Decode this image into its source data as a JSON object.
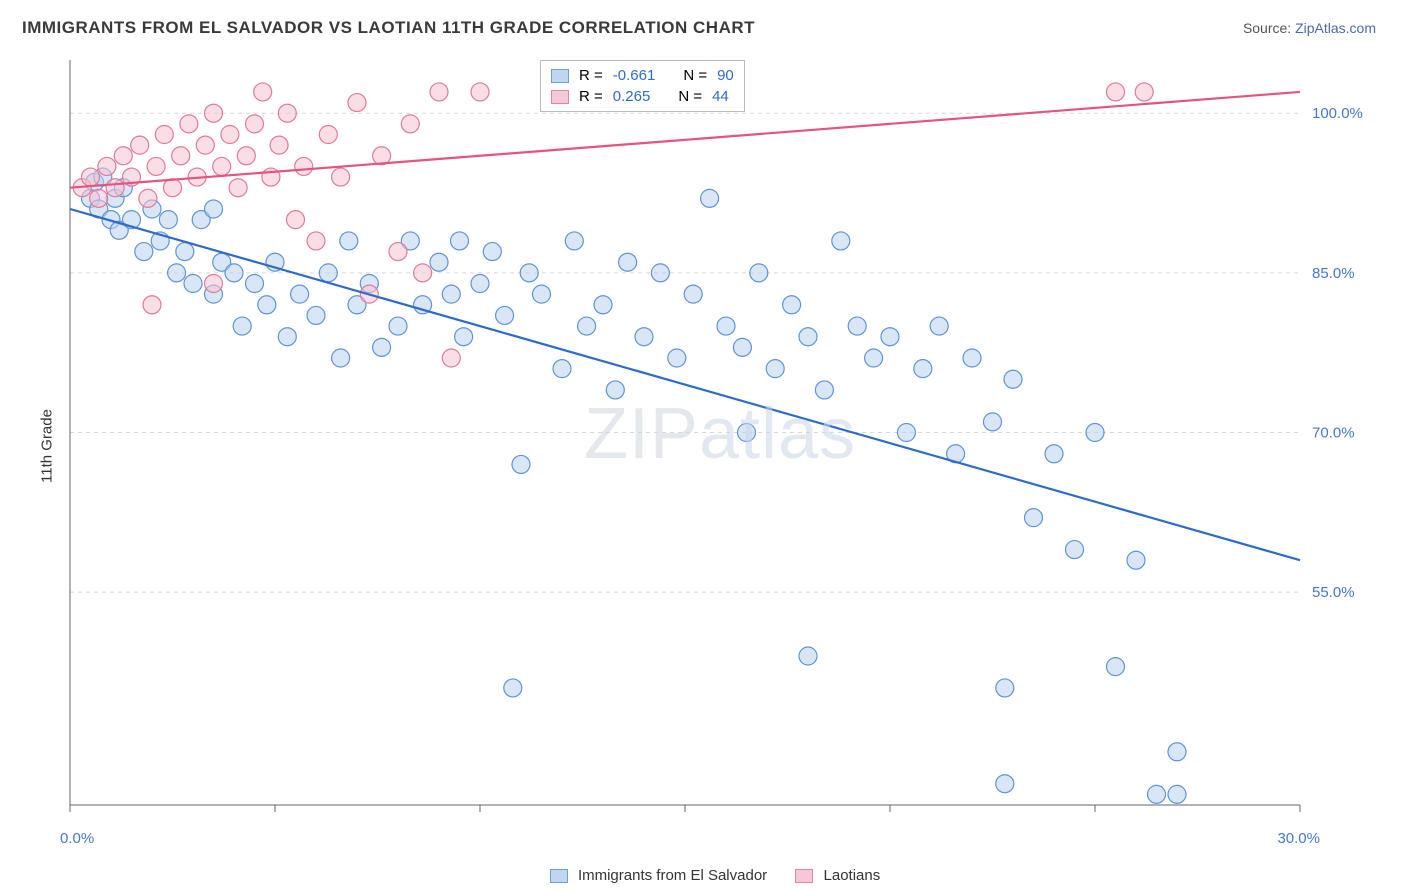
{
  "title": "IMMIGRANTS FROM EL SALVADOR VS LAOTIAN 11TH GRADE CORRELATION CHART",
  "source_prefix": "Source: ",
  "source_link": "ZipAtlas.com",
  "ylabel": "11th Grade",
  "watermark_a": "ZIP",
  "watermark_b": "atlas",
  "chart": {
    "type": "scatter",
    "xlim": [
      0,
      30
    ],
    "ylim": [
      35,
      105
    ],
    "yticks": [
      55.0,
      70.0,
      85.0,
      100.0
    ],
    "xticks_labels": [
      "0.0%",
      "30.0%"
    ],
    "yticks_labels": [
      "55.0%",
      "70.0%",
      "85.0%",
      "100.0%"
    ],
    "grid_color": "#d8d8d8",
    "axis_color": "#666666",
    "background": "#ffffff",
    "marker_radius": 9,
    "marker_stroke_width": 1.2,
    "series": [
      {
        "name": "Immigrants from El Salvador",
        "fill": "#b9d1ef",
        "stroke": "#5f94d6",
        "fill_opacity": 0.55,
        "line_color": "#2e6bc7",
        "line_width": 2.2,
        "R": "-0.661",
        "N": "90",
        "trend": {
          "x1": 0,
          "y1": 91,
          "x2": 30,
          "y2": 58
        },
        "points": [
          [
            0.5,
            92
          ],
          [
            0.6,
            93.5
          ],
          [
            0.7,
            91
          ],
          [
            0.8,
            94
          ],
          [
            1.0,
            90
          ],
          [
            1.1,
            92
          ],
          [
            1.2,
            89
          ],
          [
            1.3,
            93
          ],
          [
            1.5,
            90
          ],
          [
            1.8,
            87
          ],
          [
            2.0,
            91
          ],
          [
            2.2,
            88
          ],
          [
            2.4,
            90
          ],
          [
            2.6,
            85
          ],
          [
            2.8,
            87
          ],
          [
            3.0,
            84
          ],
          [
            3.2,
            90
          ],
          [
            3.5,
            83
          ],
          [
            3.7,
            86
          ],
          [
            4.0,
            85
          ],
          [
            4.2,
            80
          ],
          [
            4.5,
            84
          ],
          [
            4.8,
            82
          ],
          [
            5.0,
            86
          ],
          [
            5.3,
            79
          ],
          [
            5.6,
            83
          ],
          [
            6.0,
            81
          ],
          [
            6.3,
            85
          ],
          [
            6.6,
            77
          ],
          [
            7.0,
            82
          ],
          [
            7.3,
            84
          ],
          [
            7.6,
            78
          ],
          [
            8.0,
            80
          ],
          [
            8.3,
            88
          ],
          [
            8.6,
            82
          ],
          [
            9.0,
            86
          ],
          [
            9.3,
            83
          ],
          [
            9.6,
            79
          ],
          [
            10.0,
            84
          ],
          [
            10.3,
            87
          ],
          [
            10.6,
            81
          ],
          [
            11.0,
            67
          ],
          [
            11.2,
            85
          ],
          [
            11.5,
            83
          ],
          [
            12.0,
            76
          ],
          [
            12.3,
            88
          ],
          [
            12.6,
            80
          ],
          [
            13.0,
            82
          ],
          [
            13.3,
            74
          ],
          [
            13.6,
            86
          ],
          [
            14.0,
            79
          ],
          [
            14.4,
            85
          ],
          [
            14.8,
            77
          ],
          [
            15.2,
            83
          ],
          [
            15.6,
            92
          ],
          [
            16.0,
            80
          ],
          [
            16.4,
            78
          ],
          [
            16.8,
            85
          ],
          [
            17.2,
            76
          ],
          [
            17.6,
            82
          ],
          [
            18.0,
            79
          ],
          [
            18.4,
            74
          ],
          [
            18.8,
            88
          ],
          [
            19.2,
            80
          ],
          [
            19.6,
            77
          ],
          [
            20.0,
            79
          ],
          [
            20.4,
            70
          ],
          [
            20.8,
            76
          ],
          [
            21.2,
            80
          ],
          [
            21.6,
            68
          ],
          [
            22.0,
            77
          ],
          [
            22.5,
            71
          ],
          [
            23.0,
            75
          ],
          [
            23.5,
            62
          ],
          [
            24.0,
            68
          ],
          [
            24.5,
            59
          ],
          [
            25.0,
            70
          ],
          [
            25.5,
            48
          ],
          [
            26.0,
            58
          ],
          [
            26.5,
            36
          ],
          [
            27.0,
            40
          ],
          [
            10.8,
            46
          ],
          [
            18.0,
            49
          ],
          [
            22.8,
            46
          ],
          [
            22.8,
            37
          ],
          [
            16.5,
            70
          ],
          [
            27.0,
            36
          ],
          [
            3.5,
            91
          ],
          [
            6.8,
            88
          ],
          [
            9.5,
            88
          ]
        ]
      },
      {
        "name": "Laotians",
        "fill": "#f6c3d2",
        "stroke": "#e07a9a",
        "fill_opacity": 0.55,
        "line_color": "#e6537d",
        "line_width": 2.2,
        "R": "0.265",
        "N": "44",
        "trend": {
          "x1": 0,
          "y1": 93,
          "x2": 30,
          "y2": 102
        },
        "points": [
          [
            0.3,
            93
          ],
          [
            0.5,
            94
          ],
          [
            0.7,
            92
          ],
          [
            0.9,
            95
          ],
          [
            1.1,
            93
          ],
          [
            1.3,
            96
          ],
          [
            1.5,
            94
          ],
          [
            1.7,
            97
          ],
          [
            1.9,
            92
          ],
          [
            2.1,
            95
          ],
          [
            2.3,
            98
          ],
          [
            2.5,
            93
          ],
          [
            2.7,
            96
          ],
          [
            2.9,
            99
          ],
          [
            3.1,
            94
          ],
          [
            3.3,
            97
          ],
          [
            3.5,
            100
          ],
          [
            3.7,
            95
          ],
          [
            3.9,
            98
          ],
          [
            4.1,
            93
          ],
          [
            4.3,
            96
          ],
          [
            4.5,
            99
          ],
          [
            4.7,
            102
          ],
          [
            4.9,
            94
          ],
          [
            5.1,
            97
          ],
          [
            5.3,
            100
          ],
          [
            5.5,
            90
          ],
          [
            5.7,
            95
          ],
          [
            6.0,
            88
          ],
          [
            6.3,
            98
          ],
          [
            6.6,
            94
          ],
          [
            7.0,
            101
          ],
          [
            7.3,
            83
          ],
          [
            7.6,
            96
          ],
          [
            8.0,
            87
          ],
          [
            8.3,
            99
          ],
          [
            8.6,
            85
          ],
          [
            9.0,
            102
          ],
          [
            9.3,
            77
          ],
          [
            10.0,
            102
          ],
          [
            25.5,
            102
          ],
          [
            26.2,
            102
          ],
          [
            2.0,
            82
          ],
          [
            3.5,
            84
          ]
        ]
      }
    ]
  },
  "legend": {
    "series1": "Immigrants from El Salvador",
    "series2": "Laotians"
  },
  "corr_box": {
    "r_label": "R =",
    "n_label": "N ="
  }
}
